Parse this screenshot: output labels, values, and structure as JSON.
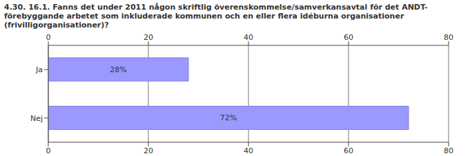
{
  "chart_data": {
    "type": "bar",
    "title": "4.30. 16.1. Fanns det under 2011 någon skriftlig överenskommelse/samverkansavtal för det ANDT-förebyggande arbetet som inkluderade kommunen och en eller flera idéburna organisationer (frivilligorganisationer)?",
    "orientation": "horizontal",
    "categories": [
      "Ja",
      "Nej"
    ],
    "values": [
      28,
      72
    ],
    "value_labels": [
      "28%",
      "72%"
    ],
    "data_labels": true,
    "color": "#9999ff",
    "xlim": [
      0,
      80
    ],
    "xticks": [
      0,
      20,
      40,
      60,
      80
    ],
    "grid": true
  }
}
